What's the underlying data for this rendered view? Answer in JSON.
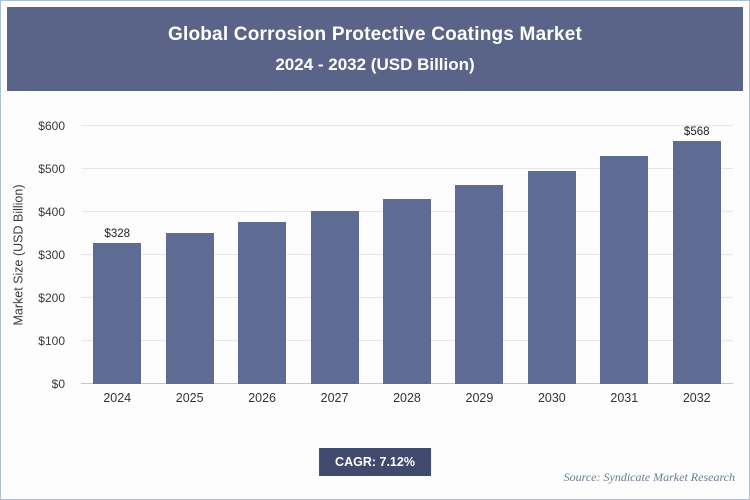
{
  "header": {
    "title_line1": "Global Corrosion Protective Coatings Market",
    "title_line2": "2024 - 2032 (USD Billion)"
  },
  "chart_data": {
    "type": "bar",
    "title": "Global Corrosion Protective Coatings Market 2024 - 2032 (USD Billion)",
    "categories": [
      "2024",
      "2025",
      "2026",
      "2027",
      "2028",
      "2029",
      "2030",
      "2031",
      "2032"
    ],
    "values": [
      328,
      351,
      376,
      403,
      431,
      462,
      495,
      530,
      568
    ],
    "bar_labels": [
      "$328",
      "",
      "",
      "",
      "",
      "",
      "",
      "",
      "$568"
    ],
    "xlabel": "",
    "ylabel": "Market Size (USD Billion)",
    "ylim": [
      0,
      600
    ],
    "ytick_step": 100,
    "ytick_labels": [
      "$0",
      "$100",
      "$200",
      "$300",
      "$400",
      "$500",
      "$600"
    ],
    "grid": true,
    "legend": false,
    "bar_color": "#5e6c93"
  },
  "footer": {
    "cagr_label": "CAGR: 7.12%",
    "source": "Source: Syndicate Market Research"
  },
  "colors": {
    "header_bg": "#5a6489",
    "bar": "#5e6c93",
    "badge_bg": "#3f4a6d",
    "grid": "#e4e6ea",
    "source_text": "#6a7a8f"
  }
}
